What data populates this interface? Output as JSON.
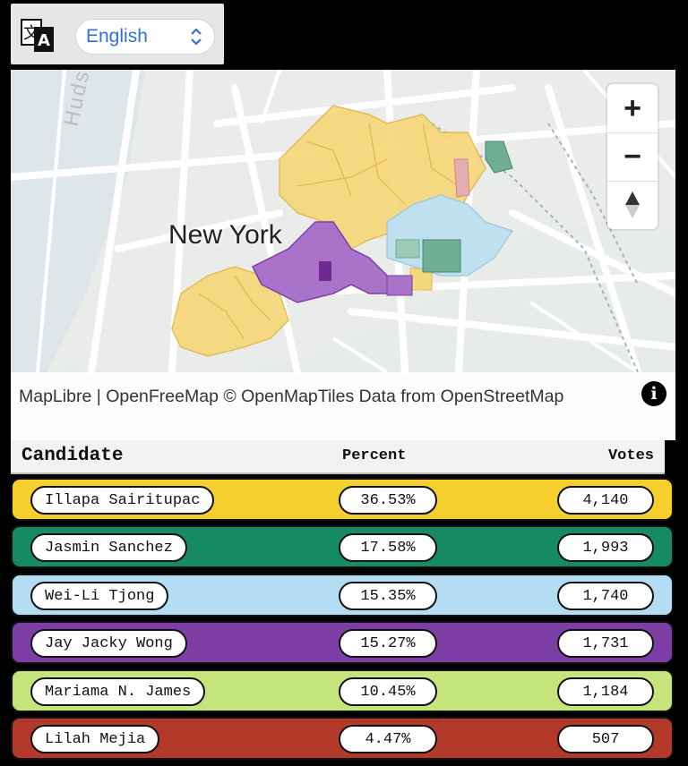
{
  "language_selector": {
    "icon": "translate-icon",
    "selected": "English"
  },
  "map": {
    "city_label": "New York",
    "river_label": "Hudson",
    "controls": {
      "zoom_in": "+",
      "zoom_out": "−",
      "compass": "compass-icon"
    },
    "attribution": "MapLibre | OpenFreeMap © OpenMapTiles Data from OpenStreetMap",
    "colors": {
      "yellow": "#f6d77a",
      "green": "#6fae95",
      "lightblue": "#bfe0ef",
      "purple": "#a873c8",
      "lime": "#d6e7a6",
      "red": "#c98a8a"
    }
  },
  "results": {
    "headers": {
      "candidate": "Candidate",
      "percent": "Percent",
      "votes": "Votes"
    },
    "rows": [
      {
        "name": "Illapa Sairitupac",
        "percent": "36.53%",
        "votes": "4,140",
        "color": "#f5cf2e"
      },
      {
        "name": "Jasmin Sanchez",
        "percent": "17.58%",
        "votes": "1,993",
        "color": "#168a64"
      },
      {
        "name": "Wei-Li Tjong",
        "percent": "15.35%",
        "votes": "1,740",
        "color": "#b4dcf3"
      },
      {
        "name": "Jay Jacky Wong",
        "percent": "15.27%",
        "votes": "1,731",
        "color": "#7d3ea6"
      },
      {
        "name": "Mariama N. James",
        "percent": "10.45%",
        "votes": "1,184",
        "color": "#c6e47c"
      },
      {
        "name": "Lilah Mejia",
        "percent": "4.47%",
        "votes": "507",
        "color": "#b33a2a"
      }
    ]
  }
}
